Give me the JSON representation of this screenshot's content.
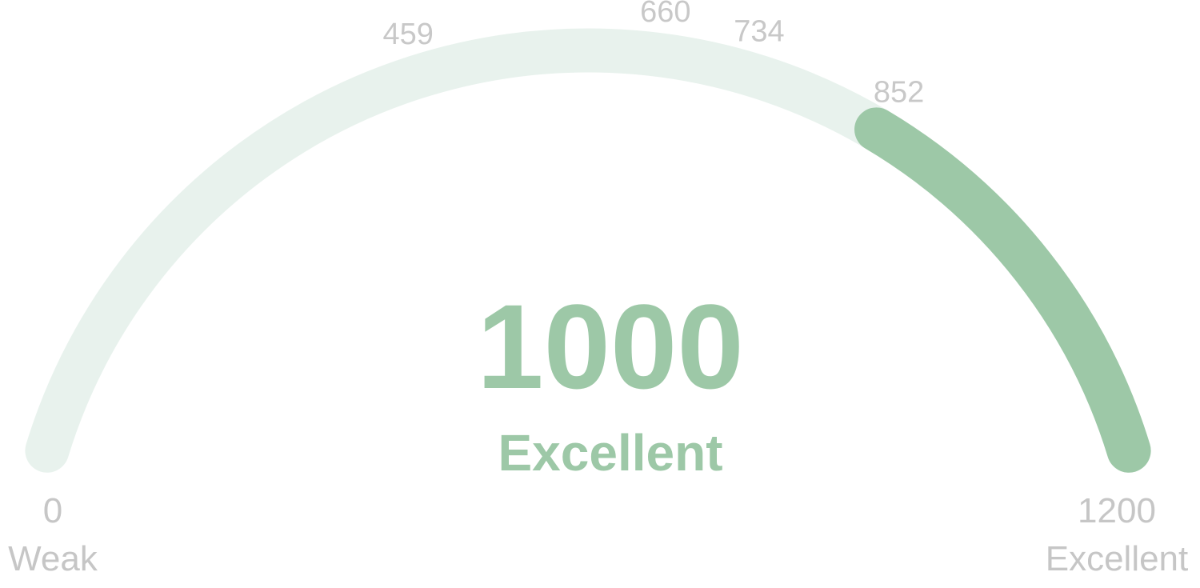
{
  "chart_data": {
    "type": "gauge",
    "min": 0,
    "max": 1200,
    "value": 1000,
    "rating": "Excellent",
    "ticks": [
      459,
      660,
      734,
      852
    ],
    "min_label": {
      "value": "0",
      "text": "Weak"
    },
    "max_label": {
      "value": "1200",
      "text": "Excellent"
    },
    "colors": {
      "track": "#e8f2ed",
      "fill": "#9dc8a7",
      "labels": "#c8c8c8"
    }
  }
}
